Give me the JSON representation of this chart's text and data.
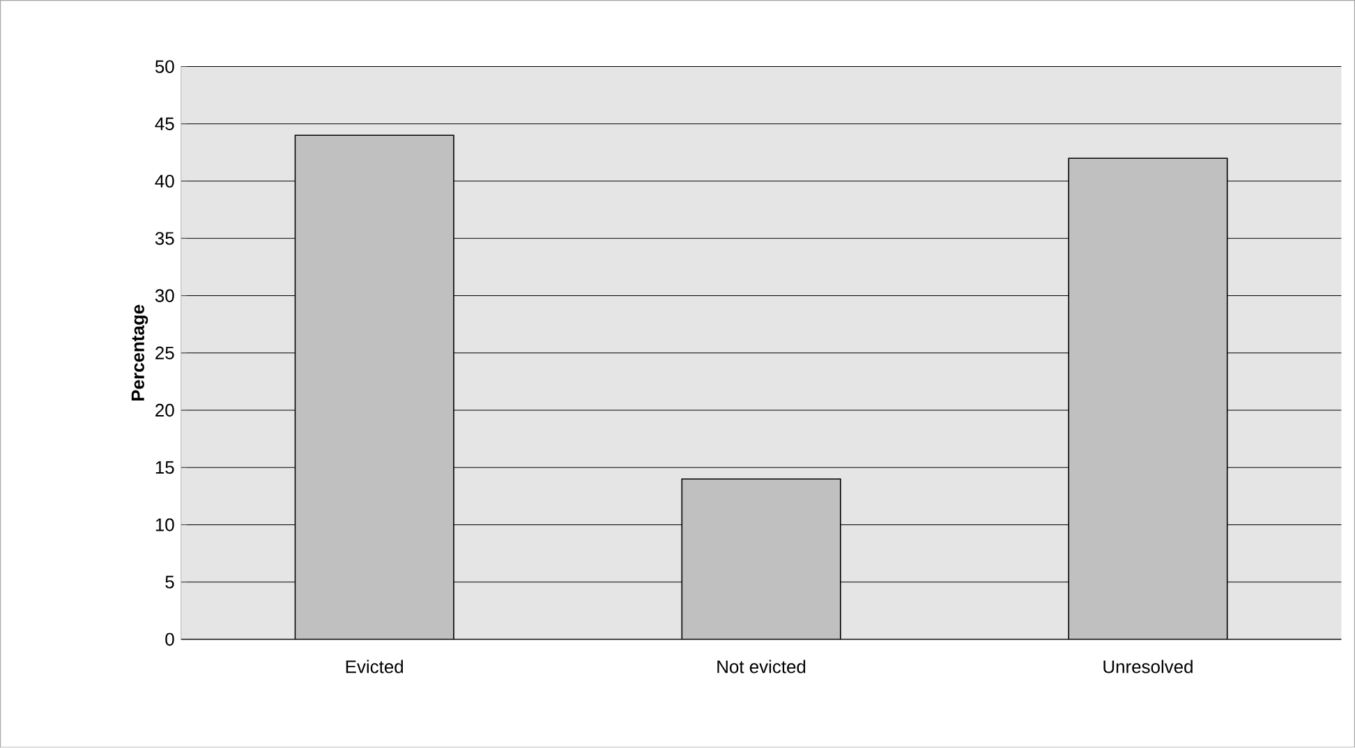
{
  "chart_data": {
    "type": "bar",
    "ylabel": "Percentage",
    "categories": [
      "Evicted",
      "Not evicted",
      "Unresolved"
    ],
    "values": [
      44,
      14,
      42
    ],
    "color": "#c0c0c0",
    "ylim": [
      0,
      50
    ],
    "yticks": [
      0,
      5,
      10,
      15,
      20,
      25,
      30,
      35,
      40,
      45,
      50
    ],
    "grid": "y"
  }
}
